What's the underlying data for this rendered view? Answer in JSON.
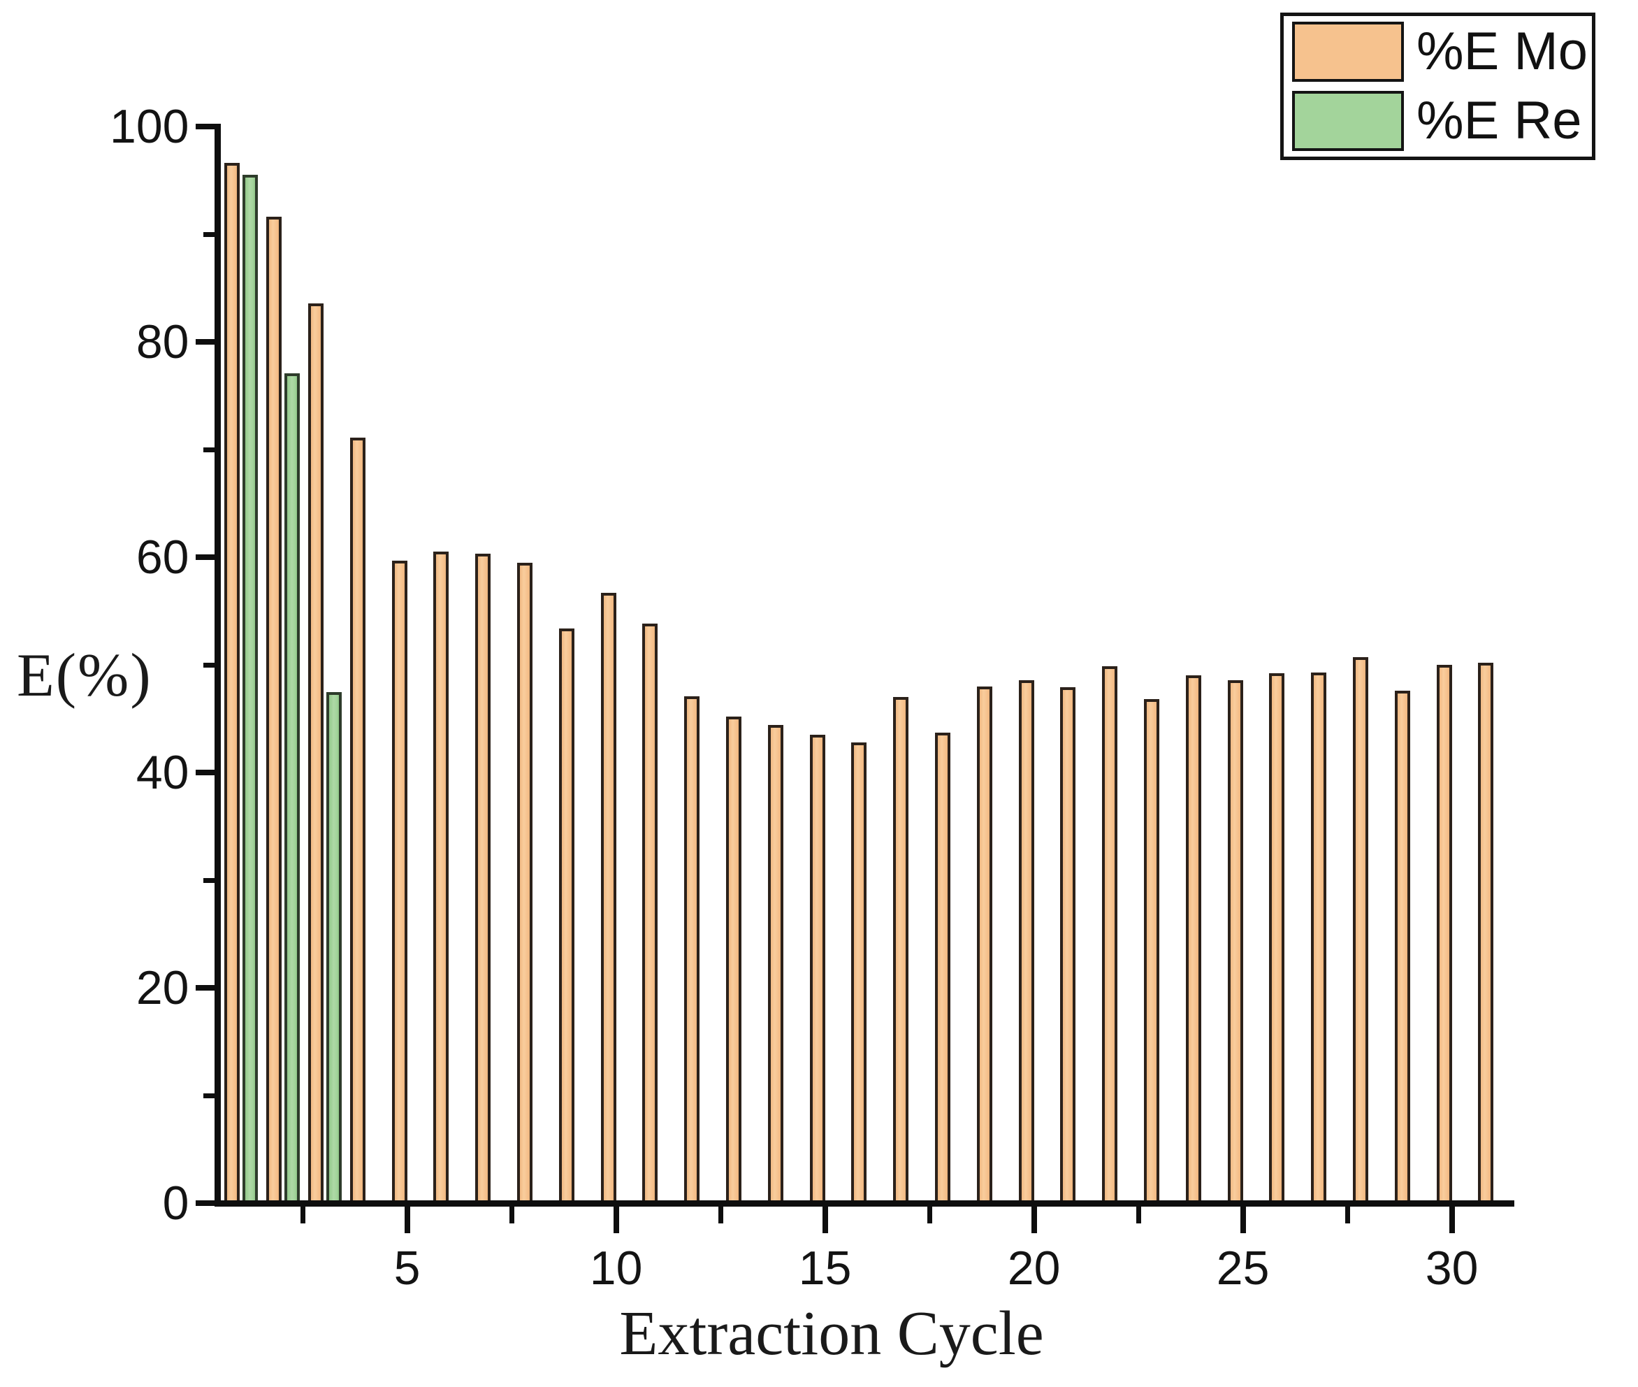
{
  "figure": {
    "background": "#ffffff",
    "axis_color": "#0e0e0e",
    "text_color": "#131313"
  },
  "legend": {
    "position": "top-right",
    "items": [
      {
        "label": "%E Mo",
        "swatch_color": "#f6c28e",
        "swatch_border": "#141414"
      },
      {
        "label": "%E Re",
        "swatch_color": "#a3d49b",
        "swatch_border": "#141414"
      }
    ]
  },
  "chart_data": {
    "type": "bar",
    "title": "",
    "xlabel": "Extraction Cycle",
    "ylabel": "E(%)",
    "ylim": [
      0,
      100
    ],
    "xlim": [
      0.5,
      31.6
    ],
    "grid": false,
    "legend_position": "top-right",
    "y_major_ticks": [
      0,
      20,
      40,
      60,
      80,
      100
    ],
    "y_minor_ticks": [
      10,
      30,
      50,
      70,
      90
    ],
    "x_major_ticks": [
      5,
      10,
      15,
      20,
      25,
      30
    ],
    "x_minor_ticks": [
      2.5,
      7.5,
      12.5,
      17.5,
      22.5,
      27.5
    ],
    "categories": [
      1,
      2,
      3,
      4,
      5,
      6,
      7,
      8,
      9,
      10,
      11,
      12,
      13,
      14,
      15,
      16,
      17,
      18,
      19,
      20,
      21,
      22,
      23,
      24,
      25,
      26,
      27,
      28,
      29,
      30,
      31
    ],
    "series": [
      {
        "name": "%E Mo",
        "color": "#f6c28e",
        "border_color": "#2b211a",
        "values": [
          96.6,
          91.6,
          83.6,
          71.1,
          59.7,
          60.5,
          60.3,
          59.5,
          53.4,
          56.7,
          53.8,
          47.1,
          45.2,
          44.4,
          43.5,
          42.8,
          47.0,
          43.7,
          48.0,
          48.6,
          47.9,
          49.9,
          46.8,
          49.0,
          48.6,
          49.2,
          49.3,
          50.7,
          47.6,
          50.0,
          50.2
        ]
      },
      {
        "name": "%E Re",
        "color": "#a3d49b",
        "border_color": "#2e3c2b",
        "values": [
          95.5,
          77.1,
          47.5,
          null,
          null,
          null,
          null,
          null,
          null,
          null,
          null,
          null,
          null,
          null,
          null,
          null,
          null,
          null,
          null,
          null,
          null,
          null,
          null,
          null,
          null,
          null,
          null,
          null,
          null,
          null,
          null
        ]
      }
    ]
  }
}
